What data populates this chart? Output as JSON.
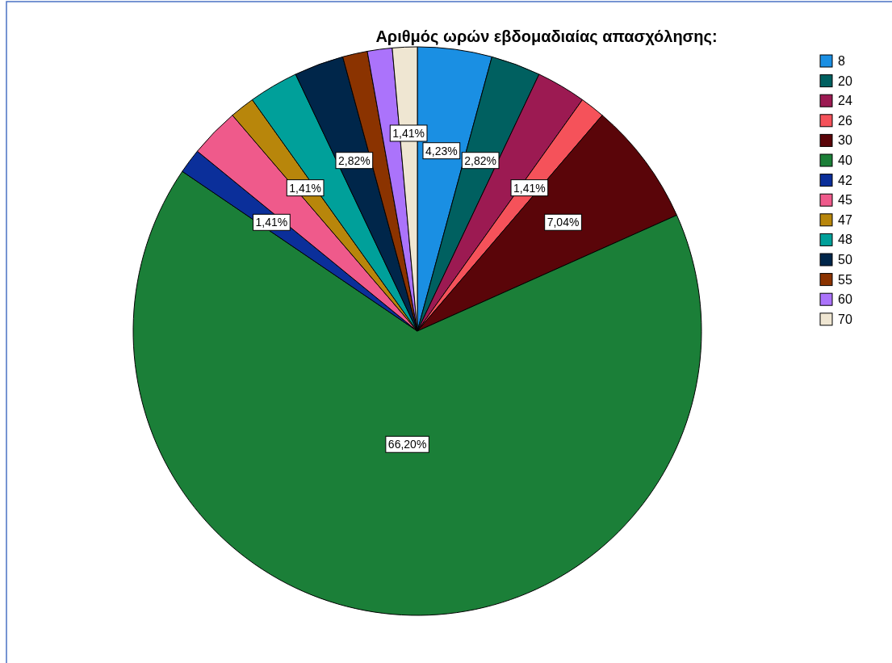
{
  "chart_data": {
    "type": "pie",
    "title": "Αριθμός ωρών εβδομαδιαίας απασχόλησης:",
    "categories": [
      "8",
      "20",
      "24",
      "26",
      "30",
      "40",
      "42",
      "45",
      "47",
      "48",
      "50",
      "55",
      "60",
      "70"
    ],
    "values": [
      4.23,
      2.82,
      2.82,
      1.41,
      7.04,
      66.2,
      1.41,
      2.82,
      1.41,
      2.82,
      2.82,
      1.41,
      1.41,
      1.41
    ],
    "value_labels": [
      "4,23%",
      "2,82%",
      null,
      "1,41%",
      "7,04%",
      "66,20%",
      "1,41%",
      null,
      "1,41%",
      null,
      "2,82%",
      null,
      null,
      "1,41%"
    ],
    "colors": [
      "#1a8fe3",
      "#006060",
      "#9c1a52",
      "#f5525a",
      "#5a0509",
      "#1b7f38",
      "#0b2f9a",
      "#ef5a8b",
      "#b8860b",
      "#00a09a",
      "#00264a",
      "#8b3300",
      "#ab73fb",
      "#efe6d2"
    ],
    "legend": "top right"
  }
}
